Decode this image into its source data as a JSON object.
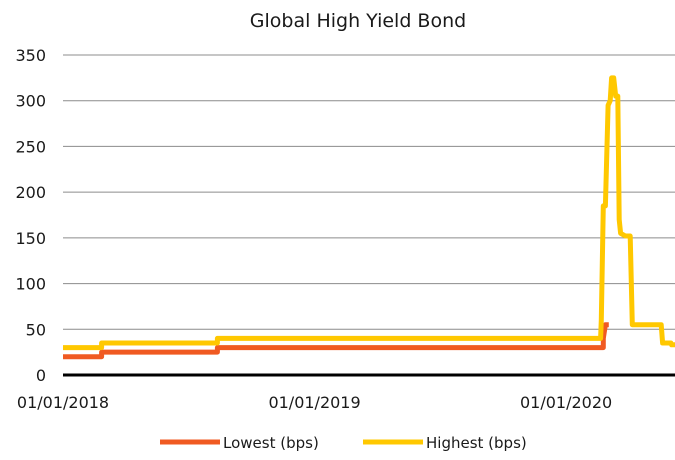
{
  "chart_data": {
    "type": "line",
    "title": "Global High Yield Bond",
    "xlabel": "",
    "ylabel": "",
    "ylim": [
      0,
      350
    ],
    "yticks": [
      0,
      50,
      100,
      150,
      200,
      250,
      300,
      350
    ],
    "xlim": [
      "2018-01-01",
      "2020-06-07"
    ],
    "xticks": [
      "2018-01-01",
      "2019-01-01",
      "2020-01-01"
    ],
    "xtick_labels": [
      "01/01/2018",
      "01/01/2019",
      "01/01/2020"
    ],
    "grid": "horizontal",
    "legend_position": "bottom",
    "series": [
      {
        "name": "Lowest (bps)",
        "color": "#f05a22",
        "points": [
          [
            "2018-01-01",
            20
          ],
          [
            "2018-02-26",
            20
          ],
          [
            "2018-02-26",
            25
          ],
          [
            "2018-08-13",
            25
          ],
          [
            "2018-08-13",
            30
          ],
          [
            "2020-02-24",
            30
          ],
          [
            "2020-02-24",
            40
          ],
          [
            "2020-02-27",
            55
          ],
          [
            "2020-03-03",
            55
          ]
        ]
      },
      {
        "name": "Highest (bps)",
        "color": "#ffc800",
        "points": [
          [
            "2018-01-01",
            30
          ],
          [
            "2018-02-26",
            30
          ],
          [
            "2018-02-26",
            35
          ],
          [
            "2018-08-13",
            35
          ],
          [
            "2018-08-13",
            40
          ],
          [
            "2020-02-20",
            40
          ],
          [
            "2020-02-21",
            60
          ],
          [
            "2020-02-24",
            185
          ],
          [
            "2020-02-27",
            185
          ],
          [
            "2020-03-02",
            295
          ],
          [
            "2020-03-05",
            300
          ],
          [
            "2020-03-07",
            325
          ],
          [
            "2020-03-10",
            325
          ],
          [
            "2020-03-13",
            305
          ],
          [
            "2020-03-16",
            305
          ],
          [
            "2020-03-18",
            170
          ],
          [
            "2020-03-20",
            155
          ],
          [
            "2020-03-27",
            152
          ],
          [
            "2020-04-03",
            152
          ],
          [
            "2020-04-06",
            55
          ],
          [
            "2020-05-18",
            55
          ],
          [
            "2020-05-20",
            35
          ],
          [
            "2020-06-01",
            35
          ],
          [
            "2020-06-02",
            33
          ],
          [
            "2020-06-07",
            33
          ]
        ]
      }
    ]
  }
}
